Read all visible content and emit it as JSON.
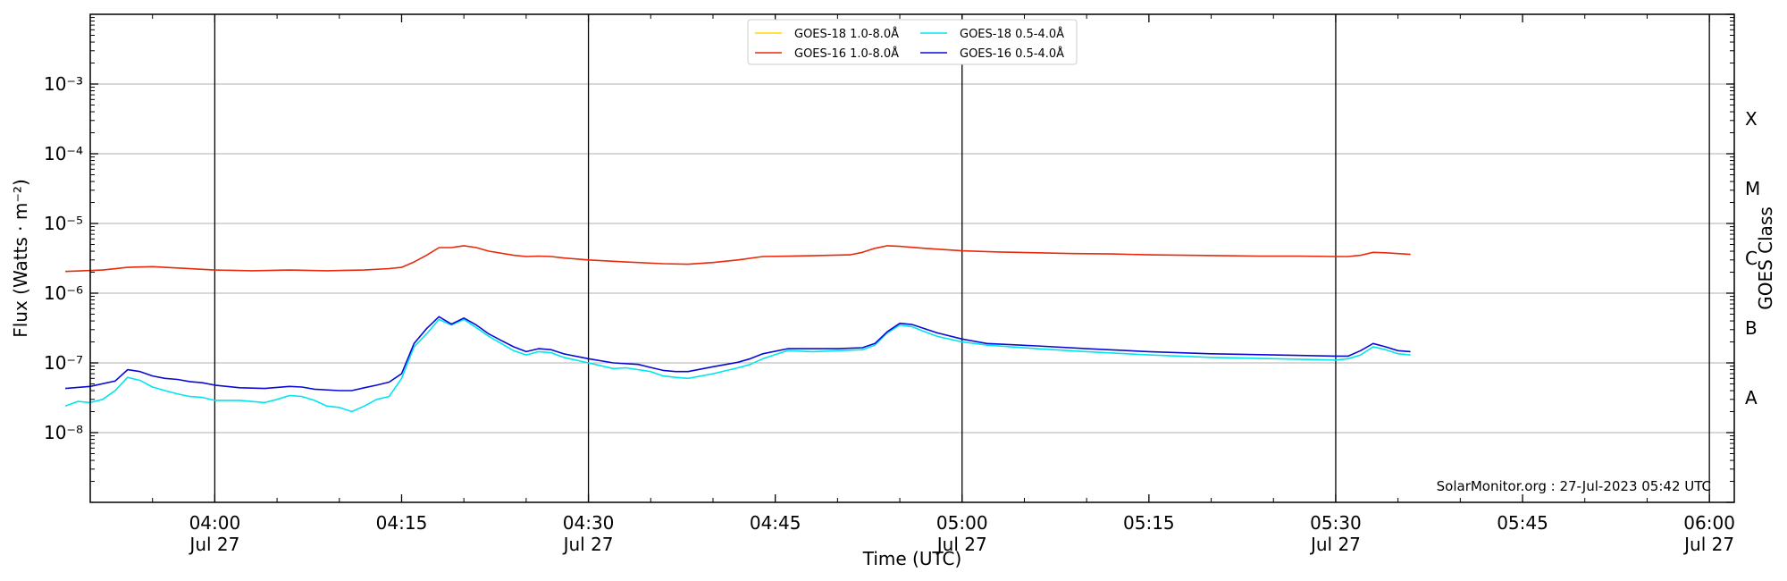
{
  "chart_data": {
    "type": "line",
    "xlabel": "Time (UTC)",
    "ylabel": "Flux (Watts · m⁻²)",
    "ylabel_right": "GOES Class",
    "x_range": [
      "03:50",
      "06:02"
    ],
    "y_range": [
      1e-09,
      0.01
    ],
    "y_scale": "log",
    "y_ticks": [
      {
        "value": 1e-08,
        "label": "10⁻⁸"
      },
      {
        "value": 1e-07,
        "label": "10⁻⁷"
      },
      {
        "value": 1e-06,
        "label": "10⁻⁶"
      },
      {
        "value": 1e-05,
        "label": "10⁻⁵"
      },
      {
        "value": 0.0001,
        "label": "10⁻⁴"
      },
      {
        "value": 0.001,
        "label": "10⁻³"
      }
    ],
    "x_ticks": [
      {
        "time": "04:00",
        "line1": "04:00",
        "line2": "Jul 27"
      },
      {
        "time": "04:15",
        "line1": "04:15",
        "line2": ""
      },
      {
        "time": "04:30",
        "line1": "04:30",
        "line2": "Jul 27"
      },
      {
        "time": "04:45",
        "line1": "04:45",
        "line2": ""
      },
      {
        "time": "05:00",
        "line1": "05:00",
        "line2": "Jul 27"
      },
      {
        "time": "05:15",
        "line1": "05:15",
        "line2": ""
      },
      {
        "time": "05:30",
        "line1": "05:30",
        "line2": "Jul 27"
      },
      {
        "time": "05:45",
        "line1": "05:45",
        "line2": ""
      },
      {
        "time": "06:00",
        "line1": "06:00",
        "line2": "Jul 27"
      }
    ],
    "vertical_lines": [
      "04:00",
      "04:30",
      "05:00",
      "05:30",
      "06:00"
    ],
    "grid": "horizontal at decades",
    "goes_classes": [
      {
        "label": "A",
        "value": 3.16e-08
      },
      {
        "label": "B",
        "value": 3.16e-07
      },
      {
        "label": "C",
        "value": 3.16e-06
      },
      {
        "label": "M",
        "value": 3.16e-05
      },
      {
        "label": "X",
        "value": 0.000316
      }
    ],
    "legend_position": "top-center",
    "annotation": "SolarMonitor.org : 27-Jul-2023 05:42 UTC",
    "series": [
      {
        "name": "GOES-18 1.0-8.0Å",
        "color": "#ffd700",
        "x": [],
        "y": []
      },
      {
        "name": "GOES-16 1.0-8.0Å",
        "color": "#e8290b",
        "x": [
          "03:48",
          "03:51",
          "03:53",
          "03:55",
          "03:57",
          "04:00",
          "04:03",
          "04:06",
          "04:09",
          "04:12",
          "04:14",
          "04:15",
          "04:16",
          "04:17",
          "04:18",
          "04:19",
          "04:20",
          "04:21",
          "04:22",
          "04:24",
          "04:25",
          "04:26",
          "04:27",
          "04:28",
          "04:30",
          "04:33",
          "04:36",
          "04:38",
          "04:40",
          "04:42",
          "04:44",
          "04:48",
          "04:51",
          "04:52",
          "04:53",
          "04:54",
          "04:55",
          "04:57",
          "05:00",
          "05:03",
          "05:06",
          "05:09",
          "05:12",
          "05:15",
          "05:18",
          "05:21",
          "05:24",
          "05:27",
          "05:30",
          "05:31",
          "05:32",
          "05:33",
          "05:34",
          "05:35",
          "05:36"
        ],
        "y": [
          2.05e-06,
          2.15e-06,
          2.35e-06,
          2.4e-06,
          2.3e-06,
          2.15e-06,
          2.1e-06,
          2.15e-06,
          2.1e-06,
          2.15e-06,
          2.25e-06,
          2.35e-06,
          2.8e-06,
          3.5e-06,
          4.5e-06,
          4.5e-06,
          4.8e-06,
          4.5e-06,
          4e-06,
          3.5e-06,
          3.35e-06,
          3.4e-06,
          3.35e-06,
          3.2e-06,
          3e-06,
          2.8e-06,
          2.65e-06,
          2.6e-06,
          2.75e-06,
          3e-06,
          3.35e-06,
          3.45e-06,
          3.55e-06,
          3.85e-06,
          4.4e-06,
          4.8e-06,
          4.7e-06,
          4.4e-06,
          4.05e-06,
          3.9e-06,
          3.8e-06,
          3.7e-06,
          3.65e-06,
          3.55e-06,
          3.5e-06,
          3.45e-06,
          3.4e-06,
          3.4e-06,
          3.35e-06,
          3.35e-06,
          3.5e-06,
          3.85e-06,
          3.8e-06,
          3.7e-06,
          3.6e-06
        ]
      },
      {
        "name": "GOES-18 0.5-4.0Å",
        "color": "#00e5ee",
        "x": [
          "03:48",
          "03:49",
          "03:50",
          "03:51",
          "03:52",
          "03:53",
          "03:54",
          "03:55",
          "03:56",
          "03:57",
          "03:58",
          "03:59",
          "04:00",
          "04:02",
          "04:04",
          "04:05",
          "04:06",
          "04:07",
          "04:08",
          "04:09",
          "04:10",
          "04:11",
          "04:12",
          "04:13",
          "04:14",
          "04:15",
          "04:16",
          "04:17",
          "04:18",
          "04:19",
          "04:20",
          "04:21",
          "04:22",
          "04:23",
          "04:24",
          "04:25",
          "04:26",
          "04:27",
          "04:28",
          "04:30",
          "04:32",
          "04:33",
          "04:35",
          "04:36",
          "04:37",
          "04:38",
          "04:40",
          "04:42",
          "04:43",
          "04:44",
          "04:46",
          "04:48",
          "04:50",
          "04:52",
          "04:53",
          "04:54",
          "04:55",
          "04:56",
          "04:57",
          "04:58",
          "05:00",
          "05:02",
          "05:06",
          "05:10",
          "05:15",
          "05:20",
          "05:25",
          "05:30",
          "05:31",
          "05:32",
          "05:33",
          "05:34",
          "05:35",
          "05:36"
        ],
        "y": [
          2.4e-08,
          2.8e-08,
          2.7e-08,
          3e-08,
          4e-08,
          6.2e-08,
          5.6e-08,
          4.5e-08,
          4e-08,
          3.6e-08,
          3.3e-08,
          3.2e-08,
          2.9e-08,
          2.9e-08,
          2.7e-08,
          3e-08,
          3.4e-08,
          3.3e-08,
          2.9e-08,
          2.4e-08,
          2.3e-08,
          2e-08,
          2.4e-08,
          3e-08,
          3.3e-08,
          6e-08,
          1.7e-07,
          2.6e-07,
          4.2e-07,
          3.5e-07,
          4.2e-07,
          3.2e-07,
          2.4e-07,
          1.9e-07,
          1.5e-07,
          1.3e-07,
          1.45e-07,
          1.4e-07,
          1.2e-07,
          1e-07,
          8.3e-08,
          8.5e-08,
          7.5e-08,
          6.5e-08,
          6.2e-08,
          6e-08,
          7e-08,
          8.5e-08,
          9.5e-08,
          1.15e-07,
          1.5e-07,
          1.45e-07,
          1.5e-07,
          1.55e-07,
          1.8e-07,
          2.7e-07,
          3.5e-07,
          3.3e-07,
          2.8e-07,
          2.4e-07,
          2e-07,
          1.8e-07,
          1.6e-07,
          1.45e-07,
          1.3e-07,
          1.2e-07,
          1.15e-07,
          1.1e-07,
          1.15e-07,
          1.3e-07,
          1.7e-07,
          1.55e-07,
          1.35e-07,
          1.3e-07
        ]
      },
      {
        "name": "GOES-16 0.5-4.0Å",
        "color": "#0a0ad6",
        "x": [
          "03:48",
          "03:50",
          "03:52",
          "03:53",
          "03:54",
          "03:55",
          "03:56",
          "03:57",
          "03:58",
          "03:59",
          "04:00",
          "04:02",
          "04:04",
          "04:06",
          "04:07",
          "04:08",
          "04:10",
          "04:11",
          "04:12",
          "04:13",
          "04:14",
          "04:15",
          "04:16",
          "04:17",
          "04:18",
          "04:19",
          "04:20",
          "04:21",
          "04:22",
          "04:23",
          "04:24",
          "04:25",
          "04:26",
          "04:27",
          "04:28",
          "04:30",
          "04:32",
          "04:34",
          "04:35",
          "04:36",
          "04:37",
          "04:38",
          "04:40",
          "04:42",
          "04:43",
          "04:44",
          "04:46",
          "04:48",
          "04:50",
          "04:52",
          "04:53",
          "04:54",
          "04:55",
          "04:56",
          "04:57",
          "04:58",
          "05:00",
          "05:02",
          "05:06",
          "05:10",
          "05:15",
          "05:20",
          "05:25",
          "05:30",
          "05:31",
          "05:32",
          "05:33",
          "05:34",
          "05:35",
          "05:36"
        ],
        "y": [
          4.3e-08,
          4.6e-08,
          5.5e-08,
          8e-08,
          7.5e-08,
          6.5e-08,
          6e-08,
          5.8e-08,
          5.4e-08,
          5.2e-08,
          4.8e-08,
          4.4e-08,
          4.3e-08,
          4.6e-08,
          4.5e-08,
          4.2e-08,
          4e-08,
          4e-08,
          4.4e-08,
          4.8e-08,
          5.3e-08,
          7e-08,
          1.9e-07,
          3.1e-07,
          4.6e-07,
          3.6e-07,
          4.4e-07,
          3.5e-07,
          2.6e-07,
          2.1e-07,
          1.7e-07,
          1.45e-07,
          1.6e-07,
          1.55e-07,
          1.35e-07,
          1.15e-07,
          1e-07,
          9.5e-08,
          8.6e-08,
          7.8e-08,
          7.5e-08,
          7.5e-08,
          8.8e-08,
          1.02e-07,
          1.15e-07,
          1.35e-07,
          1.6e-07,
          1.6e-07,
          1.6e-07,
          1.65e-07,
          1.9e-07,
          2.8e-07,
          3.7e-07,
          3.55e-07,
          3.1e-07,
          2.7e-07,
          2.2e-07,
          1.9e-07,
          1.75e-07,
          1.6e-07,
          1.45e-07,
          1.35e-07,
          1.3e-07,
          1.25e-07,
          1.25e-07,
          1.5e-07,
          1.9e-07,
          1.7e-07,
          1.5e-07,
          1.45e-07
        ]
      }
    ]
  }
}
